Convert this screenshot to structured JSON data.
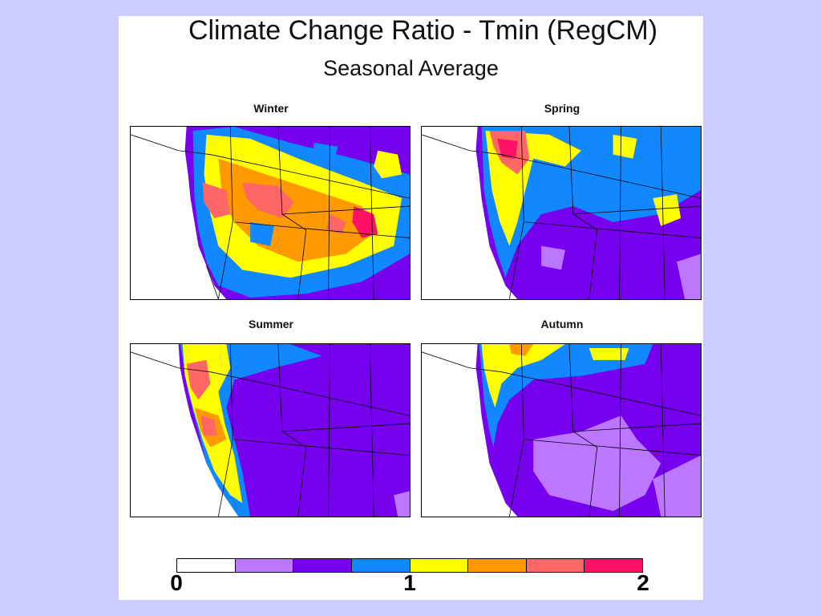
{
  "title": "Climate Change Ratio - Tmin (RegCM)",
  "subtitle": "Seasonal Average",
  "panels": [
    {
      "label": "Winter"
    },
    {
      "label": "Spring"
    },
    {
      "label": "Summer"
    },
    {
      "label": "Autumn"
    }
  ],
  "colorbar": {
    "colors": [
      "#ffffff",
      "#bb77ff",
      "#7700ee",
      "#1188ff",
      "#ffff00",
      "#ff9900",
      "#ff6666",
      "#ff1166"
    ],
    "ticks": [
      {
        "label": "0",
        "value": 0
      },
      {
        "label": "1",
        "value": 1
      },
      {
        "label": "2",
        "value": 2
      }
    ],
    "range": [
      0,
      2
    ]
  }
}
